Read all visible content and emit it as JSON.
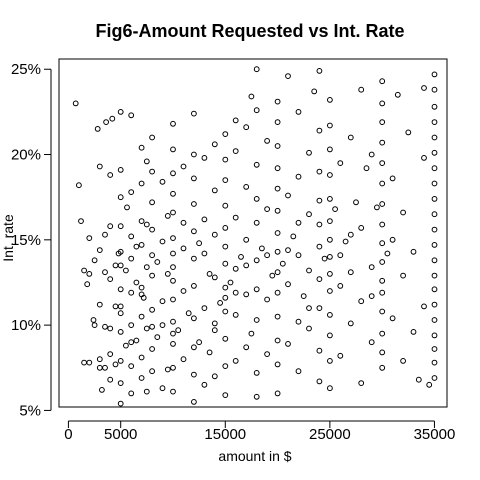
{
  "chart_data": {
    "type": "scatter",
    "title": "Fig6-Amount Requested vs Int. Rate",
    "xlabel": "amount in $",
    "ylabel": "Int. rate",
    "xlim": [
      -900,
      36200
    ],
    "ylim": [
      5.2,
      25.6
    ],
    "x_ticks": [
      0,
      5000,
      15000,
      25000,
      35000
    ],
    "x_tick_labels": [
      "0",
      "5000",
      "15000",
      "25000",
      "35000"
    ],
    "y_ticks": [
      5,
      10,
      15,
      20,
      25
    ],
    "y_tick_labels": [
      "5%",
      "10%",
      "15%",
      "20%",
      "25%"
    ],
    "marker": "open-circle",
    "point_color": "#000000",
    "grid": false,
    "legend": false,
    "points": [
      [
        700,
        23.0
      ],
      [
        1000,
        18.2
      ],
      [
        1200,
        16.1
      ],
      [
        1500,
        13.2
      ],
      [
        1800,
        12.4
      ],
      [
        2000,
        7.8
      ],
      [
        2000,
        15.1
      ],
      [
        2400,
        10.3
      ],
      [
        2500,
        13.8
      ],
      [
        2800,
        21.5
      ],
      [
        3000,
        7.5
      ],
      [
        3000,
        11.2
      ],
      [
        3000,
        14.4
      ],
      [
        3000,
        19.3
      ],
      [
        3200,
        6.2
      ],
      [
        3500,
        9.9
      ],
      [
        3500,
        13.1
      ],
      [
        3600,
        21.9
      ],
      [
        4000,
        6.8
      ],
      [
        4000,
        8.3
      ],
      [
        4000,
        12.7
      ],
      [
        4000,
        15.8
      ],
      [
        4000,
        18.8
      ],
      [
        4200,
        22.1
      ],
      [
        4500,
        7.7
      ],
      [
        4500,
        11.1
      ],
      [
        4800,
        14.2
      ],
      [
        5000,
        5.4
      ],
      [
        5000,
        6.6
      ],
      [
        5000,
        7.9
      ],
      [
        5000,
        9.6
      ],
      [
        5000,
        10.7
      ],
      [
        5000,
        12.1
      ],
      [
        5000,
        13.5
      ],
      [
        5000,
        14.3
      ],
      [
        5000,
        15.8
      ],
      [
        5000,
        17.5
      ],
      [
        5000,
        19.1
      ],
      [
        5000,
        22.5
      ],
      [
        5500,
        8.8
      ],
      [
        5500,
        13.2
      ],
      [
        5600,
        16.9
      ],
      [
        6000,
        6.0
      ],
      [
        6000,
        7.6
      ],
      [
        6000,
        10.0
      ],
      [
        6000,
        11.9
      ],
      [
        6000,
        13.9
      ],
      [
        6000,
        15.2
      ],
      [
        6000,
        17.8
      ],
      [
        6000,
        22.3
      ],
      [
        6500,
        9.1
      ],
      [
        6500,
        12.5
      ],
      [
        7000,
        6.9
      ],
      [
        7000,
        8.1
      ],
      [
        7000,
        10.5
      ],
      [
        7000,
        12.2
      ],
      [
        7000,
        14.7
      ],
      [
        7000,
        16.1
      ],
      [
        7000,
        18.3
      ],
      [
        7000,
        20.4
      ],
      [
        7200,
        11.6
      ],
      [
        7500,
        6.1
      ],
      [
        7500,
        9.8
      ],
      [
        7500,
        13.4
      ],
      [
        7500,
        15.9
      ],
      [
        7500,
        19.6
      ],
      [
        8000,
        7.3
      ],
      [
        8000,
        8.6
      ],
      [
        8000,
        10.9
      ],
      [
        8000,
        12.9
      ],
      [
        8000,
        14.1
      ],
      [
        8000,
        15.6
      ],
      [
        8000,
        17.2
      ],
      [
        8000,
        19.0
      ],
      [
        8000,
        21.0
      ],
      [
        8500,
        9.3
      ],
      [
        8500,
        13.7
      ],
      [
        9000,
        6.3
      ],
      [
        9000,
        11.4
      ],
      [
        9000,
        14.9
      ],
      [
        9000,
        18.4
      ],
      [
        9500,
        7.4
      ],
      [
        9500,
        16.4
      ],
      [
        10000,
        6.1
      ],
      [
        10000,
        7.5
      ],
      [
        10000,
        8.9
      ],
      [
        10000,
        10.2
      ],
      [
        10000,
        11.5
      ],
      [
        10000,
        12.6
      ],
      [
        10000,
        13.4
      ],
      [
        10000,
        14.2
      ],
      [
        10000,
        15.1
      ],
      [
        10000,
        16.6
      ],
      [
        10000,
        17.7
      ],
      [
        10000,
        18.9
      ],
      [
        10000,
        20.3
      ],
      [
        10000,
        21.8
      ],
      [
        10500,
        9.7
      ],
      [
        11000,
        8.0
      ],
      [
        11000,
        12.0
      ],
      [
        11000,
        14.5
      ],
      [
        11000,
        19.3
      ],
      [
        11500,
        10.7
      ],
      [
        12000,
        5.5
      ],
      [
        12000,
        7.1
      ],
      [
        12000,
        8.7
      ],
      [
        12000,
        10.4
      ],
      [
        12000,
        12.3
      ],
      [
        12000,
        13.9
      ],
      [
        12000,
        15.5
      ],
      [
        12000,
        17.1
      ],
      [
        12000,
        18.6
      ],
      [
        12000,
        20.0
      ],
      [
        12000,
        22.4
      ],
      [
        12500,
        9.0
      ],
      [
        12500,
        14.8
      ],
      [
        13000,
        6.5
      ],
      [
        13000,
        11.0
      ],
      [
        13000,
        16.2
      ],
      [
        13000,
        19.8
      ],
      [
        13500,
        8.4
      ],
      [
        13500,
        13.0
      ],
      [
        14000,
        7.0
      ],
      [
        14000,
        10.1
      ],
      [
        14000,
        12.8
      ],
      [
        14000,
        15.3
      ],
      [
        14000,
        17.9
      ],
      [
        14000,
        20.6
      ],
      [
        14500,
        11.3
      ],
      [
        15000,
        5.9
      ],
      [
        15000,
        7.6
      ],
      [
        15000,
        9.2
      ],
      [
        15000,
        10.8
      ],
      [
        15000,
        12.2
      ],
      [
        15000,
        13.6
      ],
      [
        15000,
        14.6
      ],
      [
        15000,
        15.7
      ],
      [
        15000,
        17.0
      ],
      [
        15000,
        18.5
      ],
      [
        15000,
        19.7
      ],
      [
        15000,
        21.2
      ],
      [
        15500,
        12.5
      ],
      [
        16000,
        7.9
      ],
      [
        16000,
        10.6
      ],
      [
        16000,
        13.3
      ],
      [
        16000,
        16.3
      ],
      [
        16000,
        20.2
      ],
      [
        16000,
        22.0
      ],
      [
        16500,
        14.0
      ],
      [
        17000,
        8.7
      ],
      [
        17000,
        11.8
      ],
      [
        17000,
        15.0
      ],
      [
        17000,
        18.1
      ],
      [
        17000,
        21.6
      ],
      [
        17500,
        9.5
      ],
      [
        17500,
        23.4
      ],
      [
        18000,
        5.8
      ],
      [
        18000,
        7.2
      ],
      [
        18000,
        10.3
      ],
      [
        18000,
        12.1
      ],
      [
        18000,
        13.8
      ],
      [
        18000,
        16.0
      ],
      [
        18000,
        17.4
      ],
      [
        18000,
        19.4
      ],
      [
        18000,
        22.6
      ],
      [
        18000,
        25.0
      ],
      [
        18500,
        14.5
      ],
      [
        19000,
        8.3
      ],
      [
        19000,
        11.5
      ],
      [
        19000,
        16.8
      ],
      [
        19000,
        20.8
      ],
      [
        19500,
        12.9
      ],
      [
        20000,
        6.0
      ],
      [
        20000,
        7.7
      ],
      [
        20000,
        9.1
      ],
      [
        20000,
        10.5
      ],
      [
        20000,
        11.9
      ],
      [
        20000,
        13.1
      ],
      [
        20000,
        14.3
      ],
      [
        20000,
        15.4
      ],
      [
        20000,
        16.7
      ],
      [
        20000,
        18.0
      ],
      [
        20000,
        19.2
      ],
      [
        20000,
        20.5
      ],
      [
        20000,
        21.9
      ],
      [
        20000,
        23.1
      ],
      [
        20500,
        13.6
      ],
      [
        21000,
        8.9
      ],
      [
        21000,
        12.4
      ],
      [
        21000,
        17.6
      ],
      [
        21000,
        24.6
      ],
      [
        21500,
        15.2
      ],
      [
        22000,
        7.3
      ],
      [
        22000,
        10.2
      ],
      [
        22000,
        14.1
      ],
      [
        22000,
        18.7
      ],
      [
        22000,
        22.5
      ],
      [
        22500,
        11.7
      ],
      [
        23000,
        9.8
      ],
      [
        23000,
        13.2
      ],
      [
        23000,
        16.5
      ],
      [
        23000,
        20.1
      ],
      [
        23500,
        23.7
      ],
      [
        24000,
        6.7
      ],
      [
        24000,
        8.5
      ],
      [
        24000,
        11.0
      ],
      [
        24000,
        12.7
      ],
      [
        24000,
        14.6
      ],
      [
        24000,
        15.9
      ],
      [
        24000,
        17.3
      ],
      [
        24000,
        19.0
      ],
      [
        24000,
        21.4
      ],
      [
        24000,
        24.9
      ],
      [
        24500,
        13.9
      ],
      [
        25000,
        6.3
      ],
      [
        25000,
        7.9
      ],
      [
        25000,
        9.4
      ],
      [
        25000,
        10.6
      ],
      [
        25000,
        12.0
      ],
      [
        25000,
        13.0
      ],
      [
        25000,
        14.0
      ],
      [
        25000,
        15.0
      ],
      [
        25000,
        16.1
      ],
      [
        25000,
        17.4
      ],
      [
        25000,
        18.8
      ],
      [
        25000,
        20.3
      ],
      [
        25000,
        21.7
      ],
      [
        25000,
        23.2
      ],
      [
        25500,
        16.8
      ],
      [
        26000,
        8.2
      ],
      [
        26000,
        12.3
      ],
      [
        26000,
        19.5
      ],
      [
        26500,
        14.9
      ],
      [
        27000,
        10.1
      ],
      [
        27000,
        13.1
      ],
      [
        27000,
        21.0
      ],
      [
        27500,
        17.2
      ],
      [
        28000,
        6.6
      ],
      [
        28000,
        11.4
      ],
      [
        28000,
        15.7
      ],
      [
        28000,
        23.8
      ],
      [
        28500,
        19.2
      ],
      [
        29000,
        9.0
      ],
      [
        29000,
        13.4
      ],
      [
        29000,
        20.0
      ],
      [
        29500,
        16.9
      ],
      [
        30000,
        7.5
      ],
      [
        30000,
        8.4
      ],
      [
        30000,
        9.5
      ],
      [
        30000,
        10.8
      ],
      [
        30000,
        11.9
      ],
      [
        30000,
        12.6
      ],
      [
        30000,
        13.7
      ],
      [
        30000,
        14.8
      ],
      [
        30000,
        15.9
      ],
      [
        30000,
        17.1
      ],
      [
        30000,
        18.3
      ],
      [
        30000,
        19.5
      ],
      [
        30000,
        20.7
      ],
      [
        30000,
        21.9
      ],
      [
        30000,
        23.0
      ],
      [
        30000,
        24.3
      ],
      [
        30500,
        14.2
      ],
      [
        31000,
        10.4
      ],
      [
        31000,
        18.6
      ],
      [
        31500,
        23.5
      ],
      [
        32000,
        7.9
      ],
      [
        32000,
        12.9
      ],
      [
        32000,
        16.6
      ],
      [
        32500,
        21.3
      ],
      [
        33000,
        9.6
      ],
      [
        33000,
        14.3
      ],
      [
        33500,
        6.8
      ],
      [
        34000,
        11.1
      ],
      [
        34000,
        19.8
      ],
      [
        34000,
        23.9
      ],
      [
        34500,
        6.5
      ],
      [
        35000,
        6.9
      ],
      [
        35000,
        7.8
      ],
      [
        35000,
        8.6
      ],
      [
        35000,
        9.4
      ],
      [
        35000,
        10.3
      ],
      [
        35000,
        11.2
      ],
      [
        35000,
        12.1
      ],
      [
        35000,
        12.9
      ],
      [
        35000,
        13.8
      ],
      [
        35000,
        14.7
      ],
      [
        35000,
        15.6
      ],
      [
        35000,
        16.5
      ],
      [
        35000,
        17.4
      ],
      [
        35000,
        18.3
      ],
      [
        35000,
        19.2
      ],
      [
        35000,
        20.1
      ],
      [
        35000,
        21.0
      ],
      [
        35000,
        21.9
      ],
      [
        35000,
        22.8
      ],
      [
        35000,
        23.8
      ],
      [
        35000,
        24.7
      ],
      [
        1500,
        7.8
      ],
      [
        2000,
        13.0
      ],
      [
        2500,
        10.0
      ],
      [
        3000,
        8.0
      ],
      [
        3500,
        7.5
      ],
      [
        3500,
        15.3
      ],
      [
        4000,
        9.8
      ],
      [
        4500,
        13.5
      ],
      [
        5000,
        11.1
      ],
      [
        6000,
        9.0
      ],
      [
        6500,
        14.6
      ],
      [
        7000,
        11.8
      ],
      [
        8000,
        9.9
      ],
      [
        9000,
        10.0
      ],
      [
        9500,
        13.0
      ],
      [
        10000,
        9.5
      ],
      [
        11000,
        16.0
      ],
      [
        13000,
        14.2
      ],
      [
        14000,
        9.7
      ],
      [
        15000,
        11.6
      ],
      [
        16000,
        11.9
      ],
      [
        17000,
        13.5
      ],
      [
        19000,
        14.1
      ],
      [
        21000,
        14.4
      ],
      [
        22000,
        16.0
      ],
      [
        23000,
        11.0
      ],
      [
        26000,
        14.1
      ],
      [
        27000,
        15.3
      ],
      [
        29000,
        11.7
      ],
      [
        31000,
        15.0
      ]
    ]
  }
}
